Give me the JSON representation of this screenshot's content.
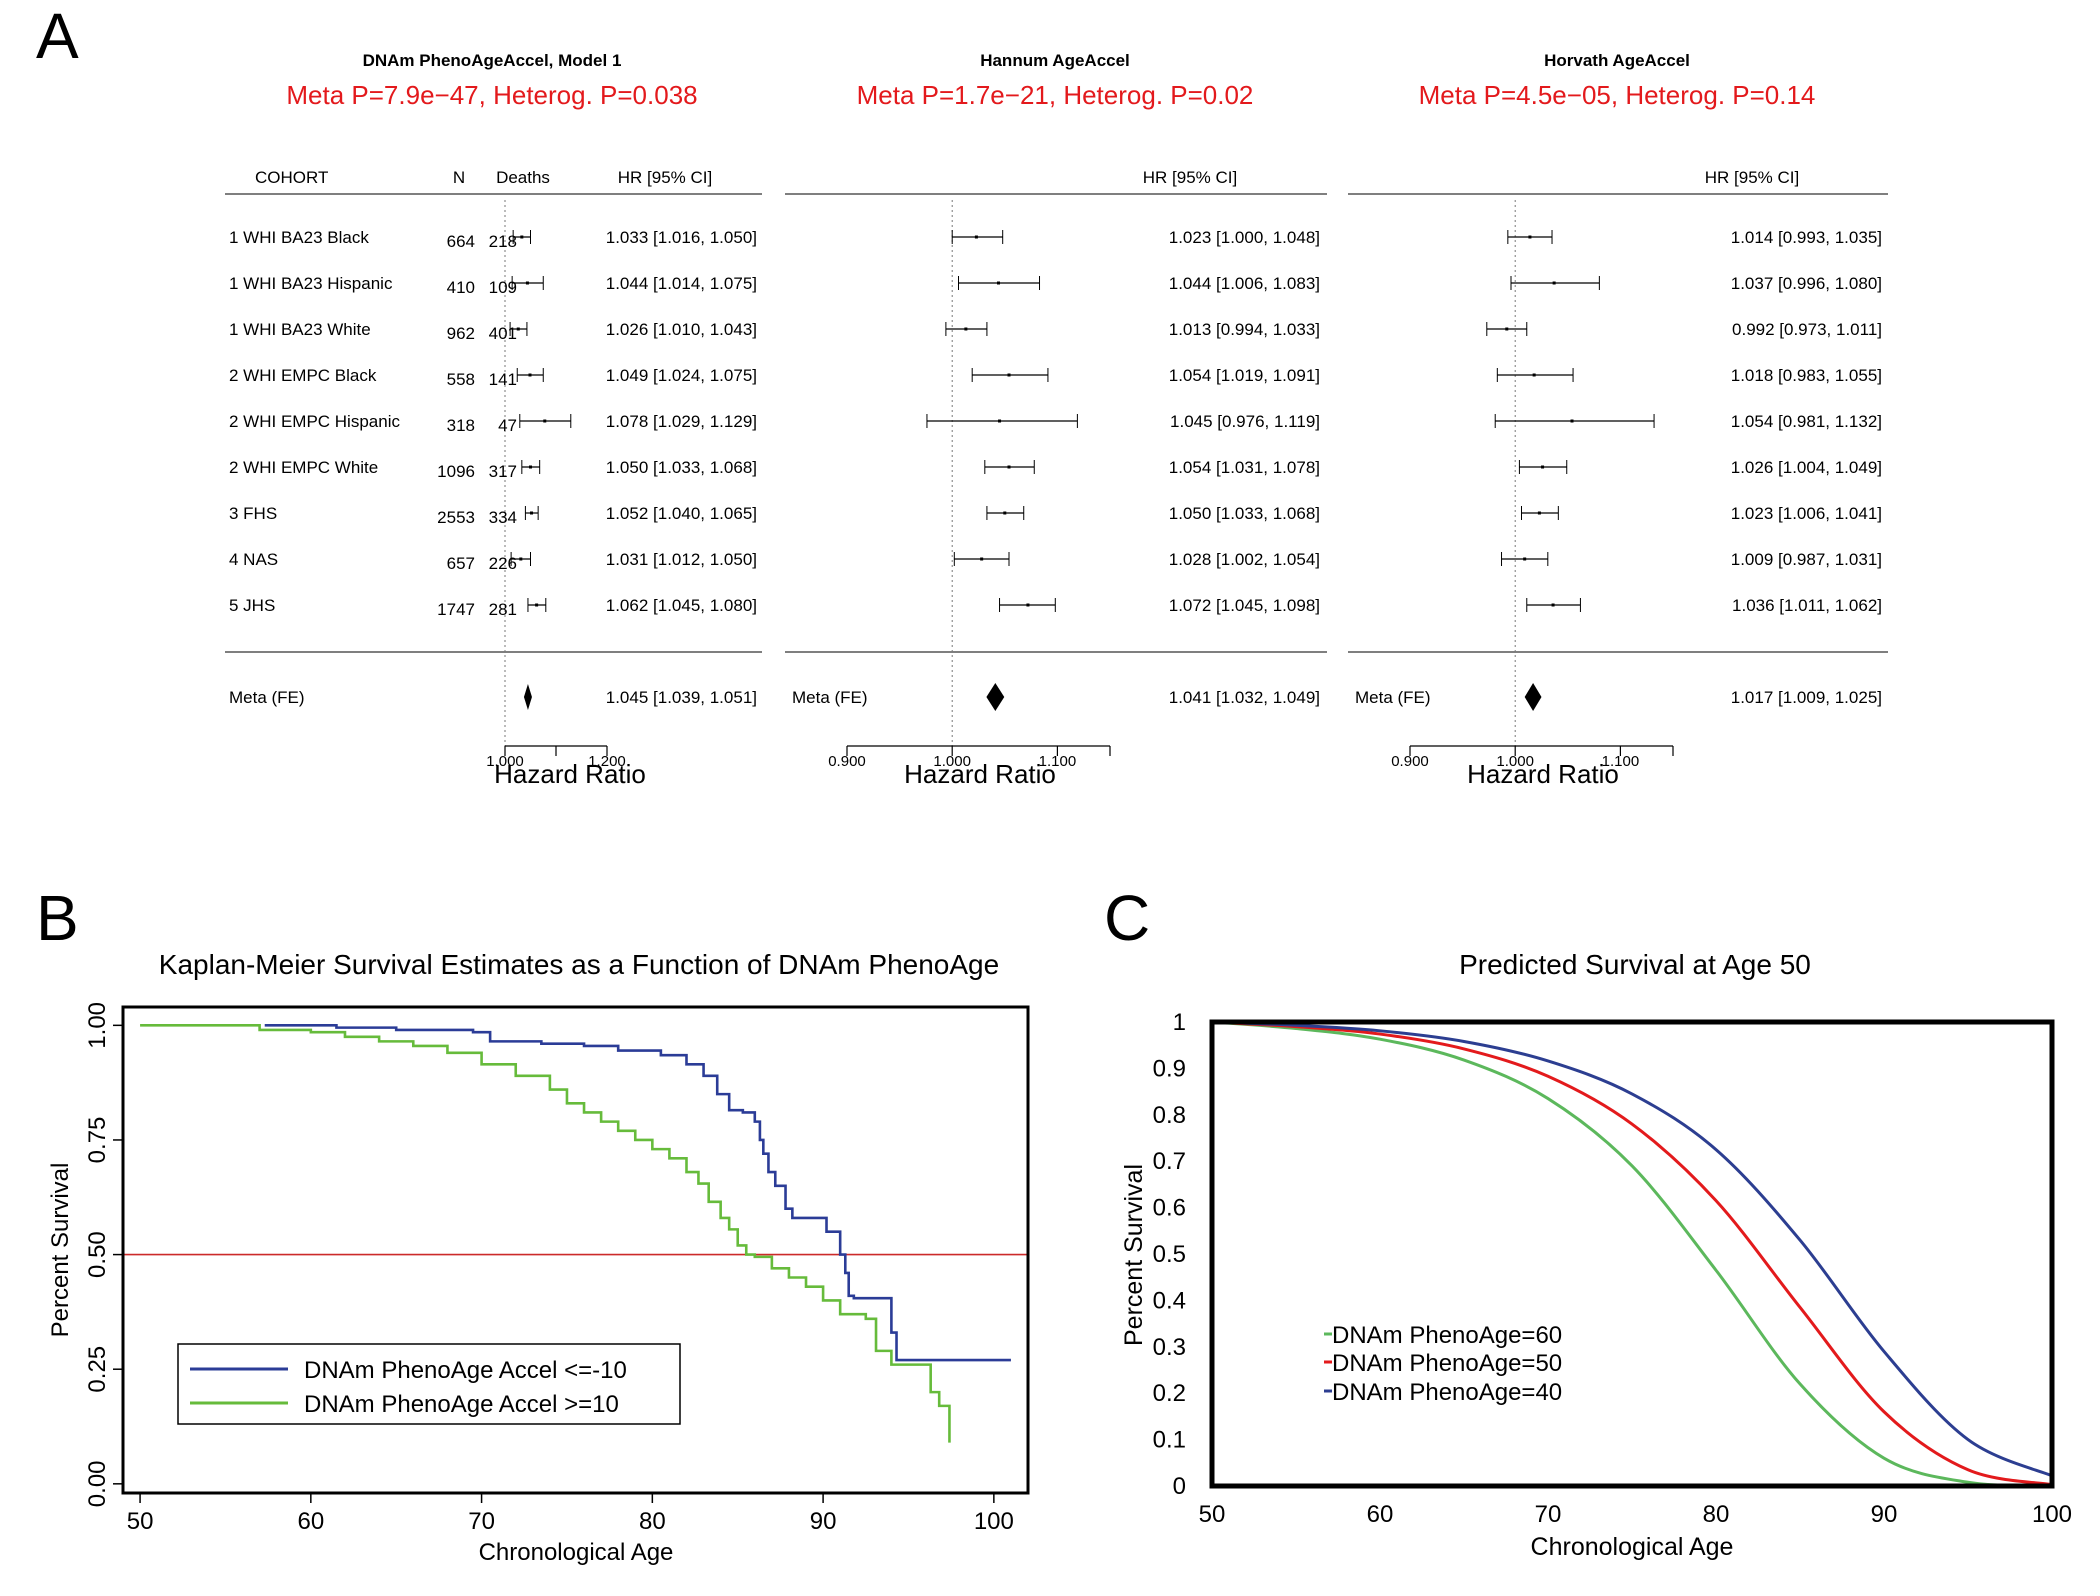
{
  "panels": {
    "A": {
      "letter": "A"
    },
    "B": {
      "letter": "B"
    },
    "C": {
      "letter": "C"
    }
  },
  "colors": {
    "pvalue_red": "#e3191c",
    "km_blue": "#2b3c97",
    "km_green": "#66bb3b",
    "km_refline": "#cc2a2a",
    "pred_green": "#5cb85c",
    "pred_red": "#e31a1c",
    "pred_blue": "#2c3e91"
  },
  "chart_data": [
    {
      "type": "forest",
      "panel": "A",
      "title": "DNAm PhenoAgeAccel, Model 1",
      "subtitle": "Meta P=7.9e−47, Heterog. P=0.038",
      "columns": {
        "cohort": "COHORT",
        "n": "N",
        "deaths": "Deaths",
        "hr": "HR [95% CI]"
      },
      "rows": [
        {
          "cohort": "1 WHI BA23 Black",
          "n": "664",
          "deaths": "218",
          "hr": 1.033,
          "lo": 1.016,
          "hi": 1.05,
          "label": "1.033 [1.016, 1.050]"
        },
        {
          "cohort": "1 WHI BA23 Hispanic",
          "n": "410",
          "deaths": "109",
          "hr": 1.044,
          "lo": 1.014,
          "hi": 1.075,
          "label": "1.044 [1.014, 1.075]"
        },
        {
          "cohort": "1 WHI BA23 White",
          "n": "962",
          "deaths": "401",
          "hr": 1.026,
          "lo": 1.01,
          "hi": 1.043,
          "label": "1.026 [1.010, 1.043]"
        },
        {
          "cohort": "2 WHI EMPC Black",
          "n": "558",
          "deaths": "141",
          "hr": 1.049,
          "lo": 1.024,
          "hi": 1.075,
          "label": "1.049 [1.024, 1.075]"
        },
        {
          "cohort": "2 WHI EMPC Hispanic",
          "n": "318",
          "deaths": "47",
          "hr": 1.078,
          "lo": 1.029,
          "hi": 1.129,
          "label": "1.078 [1.029, 1.129]"
        },
        {
          "cohort": "2 WHI EMPC White",
          "n": "1096",
          "deaths": "317",
          "hr": 1.05,
          "lo": 1.033,
          "hi": 1.068,
          "label": "1.050 [1.033, 1.068]"
        },
        {
          "cohort": "3 FHS",
          "n": "2553",
          "deaths": "334",
          "hr": 1.052,
          "lo": 1.04,
          "hi": 1.065,
          "label": "1.052 [1.040, 1.065]"
        },
        {
          "cohort": "4 NAS",
          "n": "657",
          "deaths": "226",
          "hr": 1.031,
          "lo": 1.012,
          "hi": 1.05,
          "label": "1.031 [1.012, 1.050]"
        },
        {
          "cohort": "5 JHS",
          "n": "1747",
          "deaths": "281",
          "hr": 1.062,
          "lo": 1.045,
          "hi": 1.08,
          "label": "1.062 [1.045, 1.080]"
        }
      ],
      "meta": {
        "label_text": "Meta (FE)",
        "hr": 1.045,
        "lo": 1.039,
        "hi": 1.051,
        "label": "1.045 [1.039, 1.051]"
      },
      "xlim": [
        1.0,
        1.2
      ],
      "ticks": [
        1.0,
        1.1,
        1.2
      ],
      "tick_labels": [
        "1.000",
        "",
        "1.200"
      ],
      "xlabel": "Hazard Ratio"
    },
    {
      "type": "forest",
      "panel": "A",
      "title": "Hannum AgeAccel",
      "subtitle": "Meta P=1.7e−21, Heterog. P=0.02",
      "columns": {
        "hr": "HR [95% CI]"
      },
      "rows": [
        {
          "hr": 1.023,
          "lo": 1.0,
          "hi": 1.048,
          "label": "1.023 [1.000, 1.048]"
        },
        {
          "hr": 1.044,
          "lo": 1.006,
          "hi": 1.083,
          "label": "1.044 [1.006, 1.083]"
        },
        {
          "hr": 1.013,
          "lo": 0.994,
          "hi": 1.033,
          "label": "1.013 [0.994, 1.033]"
        },
        {
          "hr": 1.054,
          "lo": 1.019,
          "hi": 1.091,
          "label": "1.054 [1.019, 1.091]"
        },
        {
          "hr": 1.045,
          "lo": 0.976,
          "hi": 1.119,
          "label": "1.045 [0.976, 1.119]"
        },
        {
          "hr": 1.054,
          "lo": 1.031,
          "hi": 1.078,
          "label": "1.054 [1.031, 1.078]"
        },
        {
          "hr": 1.05,
          "lo": 1.033,
          "hi": 1.068,
          "label": "1.050 [1.033, 1.068]"
        },
        {
          "hr": 1.028,
          "lo": 1.002,
          "hi": 1.054,
          "label": "1.028 [1.002, 1.054]"
        },
        {
          "hr": 1.072,
          "lo": 1.045,
          "hi": 1.098,
          "label": "1.072 [1.045, 1.098]"
        }
      ],
      "meta": {
        "label_text": "Meta (FE)",
        "hr": 1.041,
        "lo": 1.032,
        "hi": 1.049,
        "label": "1.041 [1.032, 1.049]"
      },
      "xlim": [
        0.9,
        1.15
      ],
      "ticks": [
        0.9,
        1.0,
        1.1,
        1.15
      ],
      "tick_labels": [
        "0.900",
        "1.000",
        "1.100",
        ""
      ],
      "xlabel": "Hazard Ratio"
    },
    {
      "type": "forest",
      "panel": "A",
      "title": "Horvath AgeAccel",
      "subtitle": "Meta P=4.5e−05, Heterog. P=0.14",
      "columns": {
        "hr": "HR [95% CI]"
      },
      "rows": [
        {
          "hr": 1.014,
          "lo": 0.993,
          "hi": 1.035,
          "label": "1.014 [0.993, 1.035]"
        },
        {
          "hr": 1.037,
          "lo": 0.996,
          "hi": 1.08,
          "label": "1.037 [0.996, 1.080]"
        },
        {
          "hr": 0.992,
          "lo": 0.973,
          "hi": 1.011,
          "label": "0.992 [0.973, 1.011]"
        },
        {
          "hr": 1.018,
          "lo": 0.983,
          "hi": 1.055,
          "label": "1.018 [0.983, 1.055]"
        },
        {
          "hr": 1.054,
          "lo": 0.981,
          "hi": 1.132,
          "label": "1.054 [0.981, 1.132]"
        },
        {
          "hr": 1.026,
          "lo": 1.004,
          "hi": 1.049,
          "label": "1.026 [1.004, 1.049]"
        },
        {
          "hr": 1.023,
          "lo": 1.006,
          "hi": 1.041,
          "label": "1.023 [1.006, 1.041]"
        },
        {
          "hr": 1.009,
          "lo": 0.987,
          "hi": 1.031,
          "label": "1.009 [0.987, 1.031]"
        },
        {
          "hr": 1.036,
          "lo": 1.011,
          "hi": 1.062,
          "label": "1.036 [1.011, 1.062]"
        }
      ],
      "meta": {
        "label_text": "Meta (FE)",
        "hr": 1.017,
        "lo": 1.009,
        "hi": 1.025,
        "label": "1.017 [1.009, 1.025]"
      },
      "xlim": [
        0.9,
        1.15
      ],
      "ticks": [
        0.9,
        1.0,
        1.1,
        1.15
      ],
      "tick_labels": [
        "0.900",
        "1.000",
        "1.100",
        ""
      ],
      "xlabel": "Hazard Ratio"
    },
    {
      "type": "line",
      "subtype": "step",
      "panel": "B",
      "title": "Kaplan-Meier Survival Estimates as a Function of DNAm PhenoAge",
      "xlabel": "Chronological Age",
      "ylabel": "Percent Survival",
      "xlim": [
        49,
        102
      ],
      "ylim": [
        -0.02,
        1.04
      ],
      "xticks": [
        50,
        60,
        70,
        80,
        90,
        100
      ],
      "yticks": [
        0,
        0.25,
        0.5,
        0.75,
        1.0
      ],
      "ytick_labels": [
        "0.00",
        "0.25",
        "0.50",
        "0.75",
        "1.00"
      ],
      "reference_line": 0.5,
      "legend_position": "bottom-left",
      "series": [
        {
          "name": "DNAm PhenoAge Accel <=-10",
          "x": [
            57.3,
            61.5,
            65,
            69.5,
            70.5,
            73.5,
            76,
            78,
            80.5,
            82,
            83,
            83.8,
            84.5,
            85.3,
            86,
            86.3,
            86.5,
            86.8,
            87.2,
            87.8,
            88.2,
            88.8,
            89.5,
            90.2,
            91,
            91.3,
            91.5,
            91.8,
            94,
            94.3,
            101
          ],
          "y": [
            1.0,
            0.995,
            0.99,
            0.985,
            0.965,
            0.96,
            0.955,
            0.945,
            0.935,
            0.915,
            0.89,
            0.85,
            0.815,
            0.81,
            0.79,
            0.75,
            0.72,
            0.68,
            0.65,
            0.6,
            0.58,
            0.58,
            0.58,
            0.55,
            0.5,
            0.46,
            0.41,
            0.405,
            0.33,
            0.27,
            0.27
          ]
        },
        {
          "name": "DNAm PhenoAge Accel >=10",
          "x": [
            50,
            57,
            60,
            62,
            64,
            66,
            68,
            70,
            72,
            74,
            75,
            76,
            77,
            78,
            79,
            80,
            81,
            82,
            82.7,
            83.3,
            84,
            84.5,
            85,
            85.5,
            86,
            87,
            88,
            89,
            90,
            91,
            92.5,
            93.1,
            94,
            95,
            96,
            96.3,
            96.8,
            97.4
          ],
          "y": [
            1.0,
            0.99,
            0.985,
            0.975,
            0.965,
            0.955,
            0.94,
            0.915,
            0.89,
            0.86,
            0.83,
            0.81,
            0.79,
            0.77,
            0.75,
            0.73,
            0.71,
            0.68,
            0.655,
            0.615,
            0.58,
            0.555,
            0.52,
            0.5,
            0.495,
            0.47,
            0.45,
            0.43,
            0.4,
            0.37,
            0.36,
            0.29,
            0.26,
            0.26,
            0.26,
            0.2,
            0.17,
            0.09
          ]
        }
      ]
    },
    {
      "type": "line",
      "panel": "C",
      "title": "Predicted Survival at Age 50",
      "xlabel": "Chronological Age",
      "ylabel": "Percent Survival",
      "xlim": [
        50,
        100
      ],
      "ylim": [
        0,
        1
      ],
      "xticks": [
        50,
        60,
        70,
        80,
        90,
        100
      ],
      "yticks": [
        0,
        0.1,
        0.2,
        0.3,
        0.4,
        0.5,
        0.6,
        0.7,
        0.8,
        0.9,
        1
      ],
      "ytick_labels": [
        "0",
        "0.1",
        "0.2",
        "0.3",
        "0.4",
        "0.5",
        "0.6",
        "0.7",
        "0.8",
        "0.9",
        "1"
      ],
      "legend_position": "lower-left",
      "series": [
        {
          "name": "DNAm PhenoAge=60",
          "x": [
            50,
            55,
            60,
            65,
            70,
            75,
            80,
            85,
            90,
            95,
            100
          ],
          "y": [
            1.0,
            0.986,
            0.963,
            0.918,
            0.835,
            0.69,
            0.465,
            0.22,
            0.06,
            0.008,
            0.0
          ]
        },
        {
          "name": "DNAm PhenoAge=50",
          "x": [
            50,
            55,
            60,
            65,
            70,
            75,
            80,
            85,
            90,
            95,
            100
          ],
          "y": [
            1.0,
            0.99,
            0.974,
            0.942,
            0.883,
            0.78,
            0.615,
            0.385,
            0.16,
            0.035,
            0.003
          ]
        },
        {
          "name": "DNAm PhenoAge=40",
          "x": [
            50,
            55,
            60,
            65,
            70,
            75,
            80,
            85,
            90,
            95,
            100
          ],
          "y": [
            1.0,
            0.993,
            0.981,
            0.958,
            0.916,
            0.845,
            0.725,
            0.53,
            0.29,
            0.1,
            0.022
          ]
        }
      ]
    }
  ]
}
